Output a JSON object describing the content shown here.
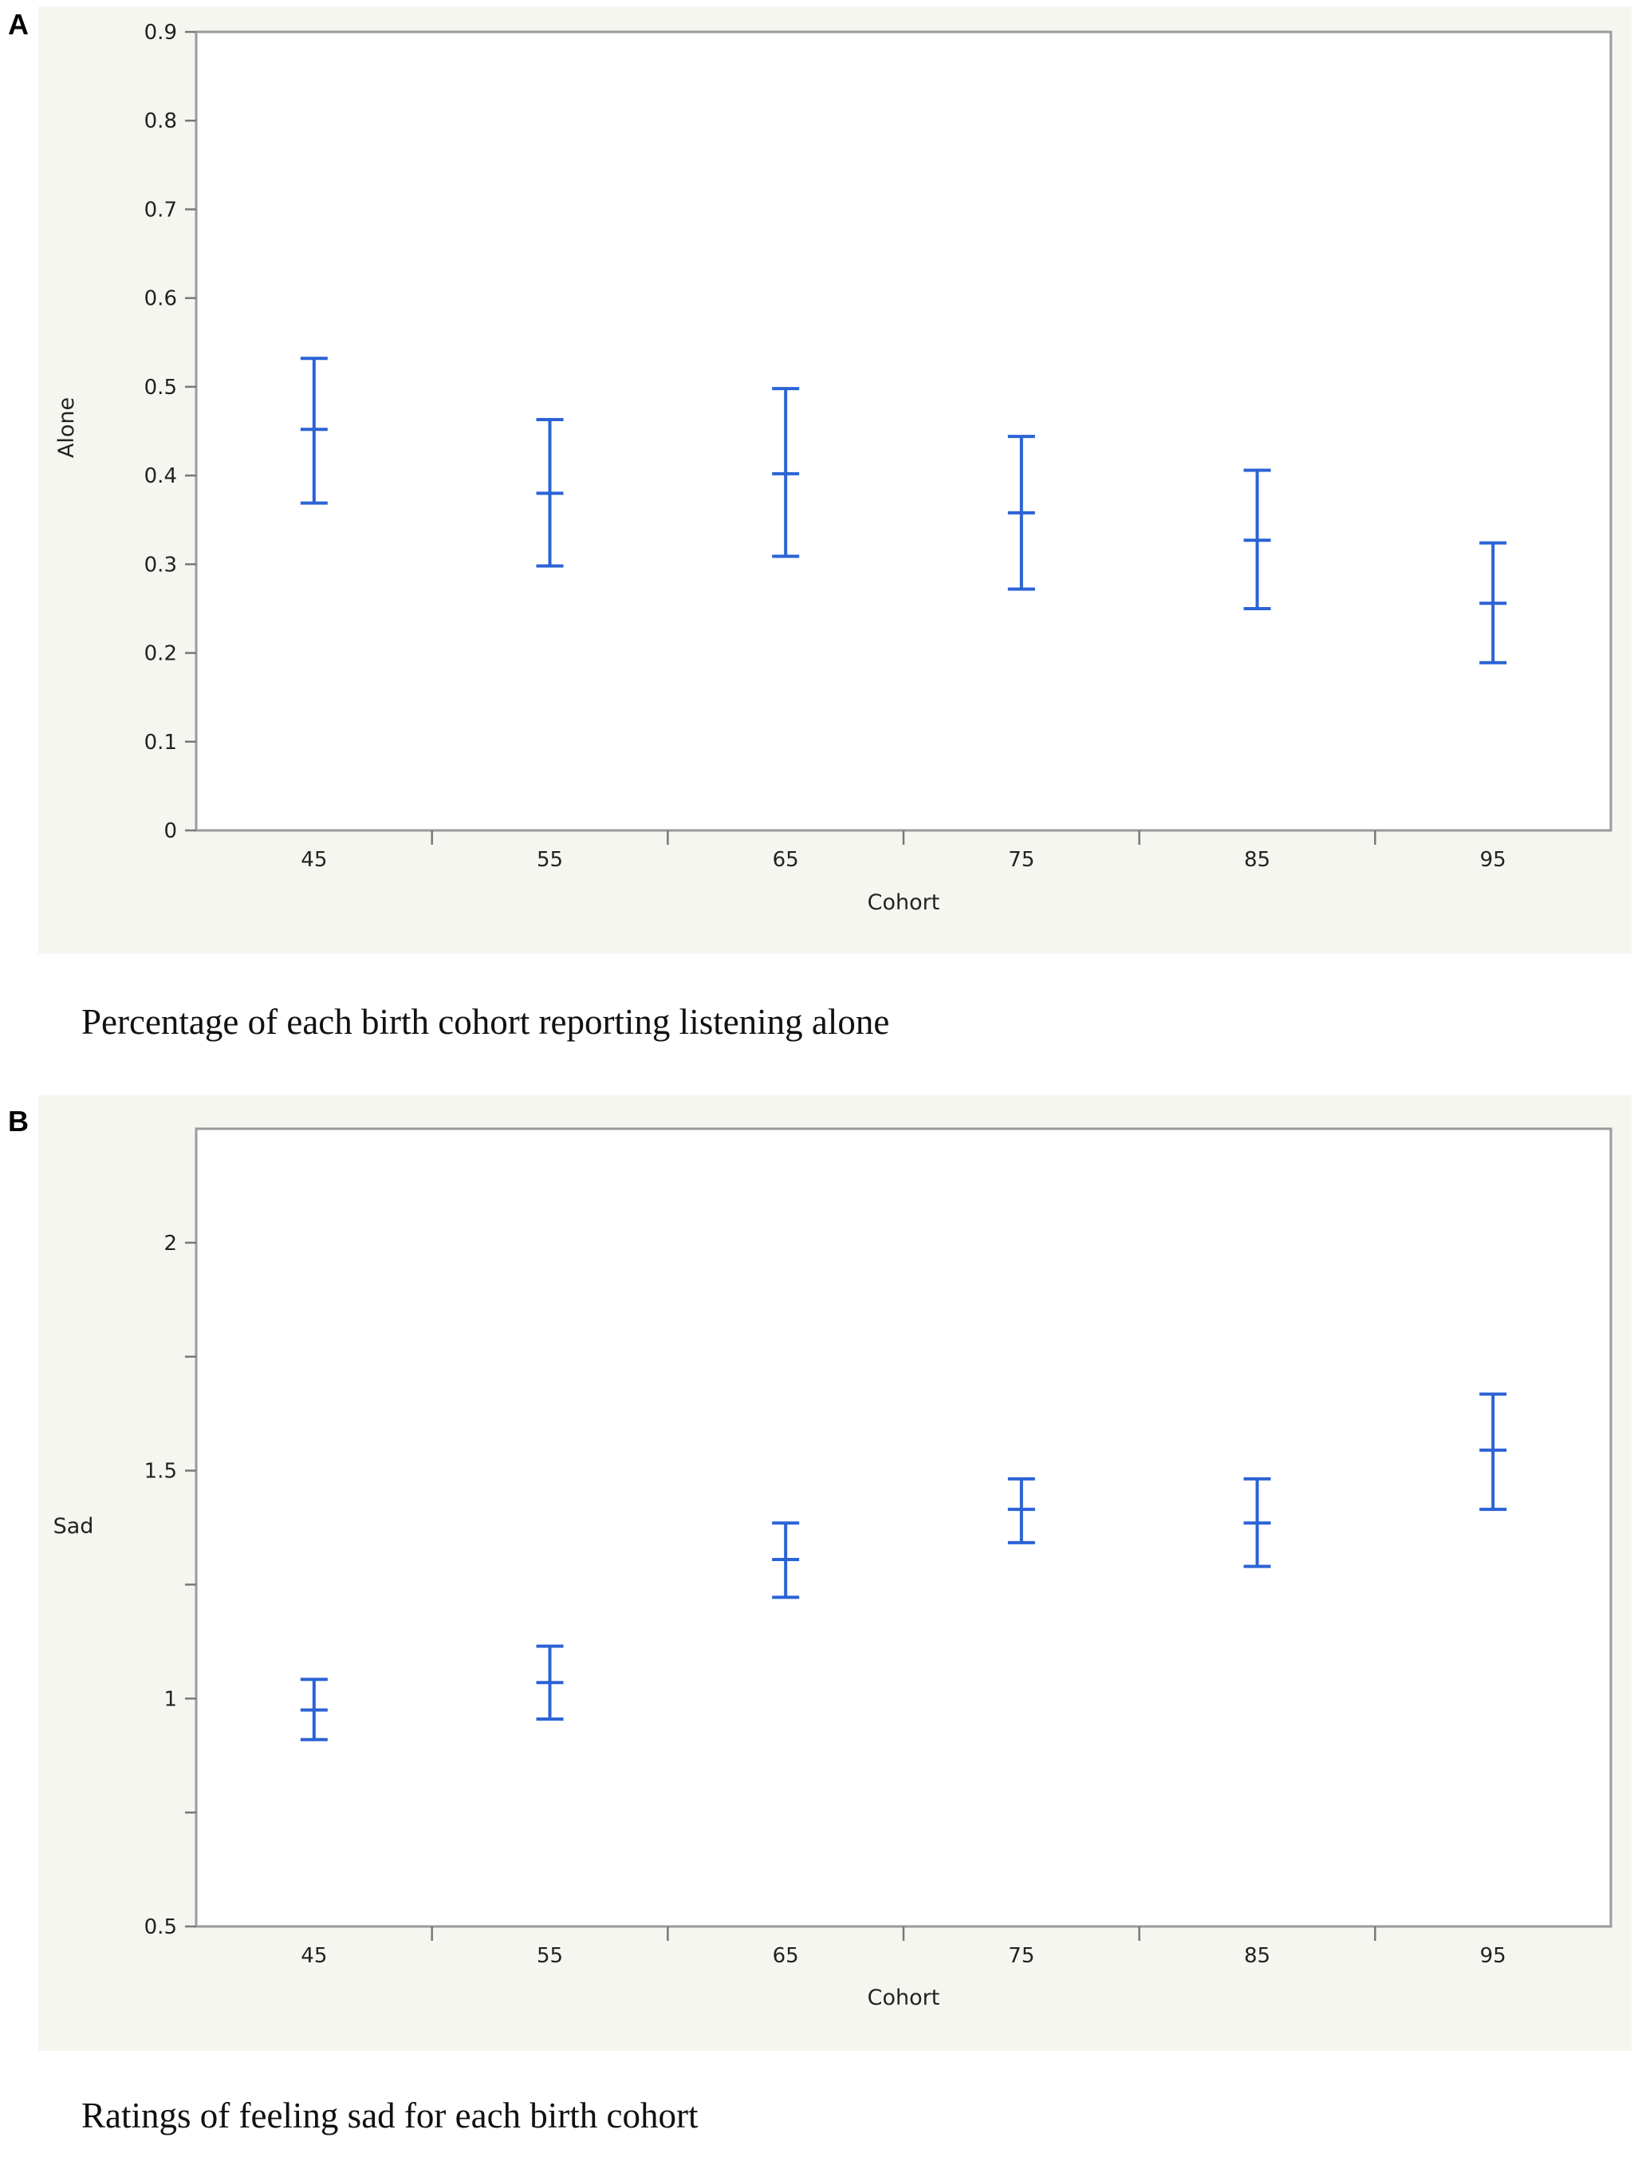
{
  "chart_data": [
    {
      "panel": "A",
      "type": "errorbar",
      "xlabel": "Cohort",
      "ylabel": "Alone",
      "caption": "Percentage of each birth cohort reporting listening alone",
      "ylim": [
        0,
        0.9
      ],
      "yticks": [
        0,
        0.1,
        0.2,
        0.3,
        0.4,
        0.5,
        0.6,
        0.7,
        0.8,
        0.9
      ],
      "ytick_labels": [
        "0",
        "0.1",
        "0.2",
        "0.3",
        "0.4",
        "0.5",
        "0.6",
        "0.7",
        "0.8",
        "0.9"
      ],
      "categories": [
        "45",
        "55",
        "65",
        "75",
        "85",
        "95"
      ],
      "mean": [
        0.452,
        0.38,
        0.402,
        0.358,
        0.327,
        0.256
      ],
      "lower": [
        0.369,
        0.298,
        0.309,
        0.272,
        0.25,
        0.189
      ],
      "upper": [
        0.532,
        0.463,
        0.498,
        0.444,
        0.406,
        0.324
      ],
      "grid": false,
      "color": "#2b63d6"
    },
    {
      "panel": "B",
      "type": "errorbar",
      "xlabel": "Cohort",
      "ylabel": "Sad",
      "caption": "Ratings of feeling sad for each birth cohort",
      "ylim": [
        0.5,
        2.25
      ],
      "yticks": [
        0.5,
        0.75,
        1,
        1.25,
        1.5,
        1.75,
        2
      ],
      "ytick_labels": [
        "0.5",
        "",
        "1",
        "",
        "1.5",
        "",
        "2"
      ],
      "categories": [
        "45",
        "55",
        "65",
        "75",
        "85",
        "95"
      ],
      "mean": [
        0.975,
        1.035,
        1.305,
        1.415,
        1.385,
        1.545
      ],
      "lower": [
        0.91,
        0.955,
        1.222,
        1.342,
        1.29,
        1.415
      ],
      "upper": [
        1.042,
        1.115,
        1.385,
        1.482,
        1.482,
        1.668
      ],
      "grid": false,
      "color": "#2b63d6"
    }
  ]
}
